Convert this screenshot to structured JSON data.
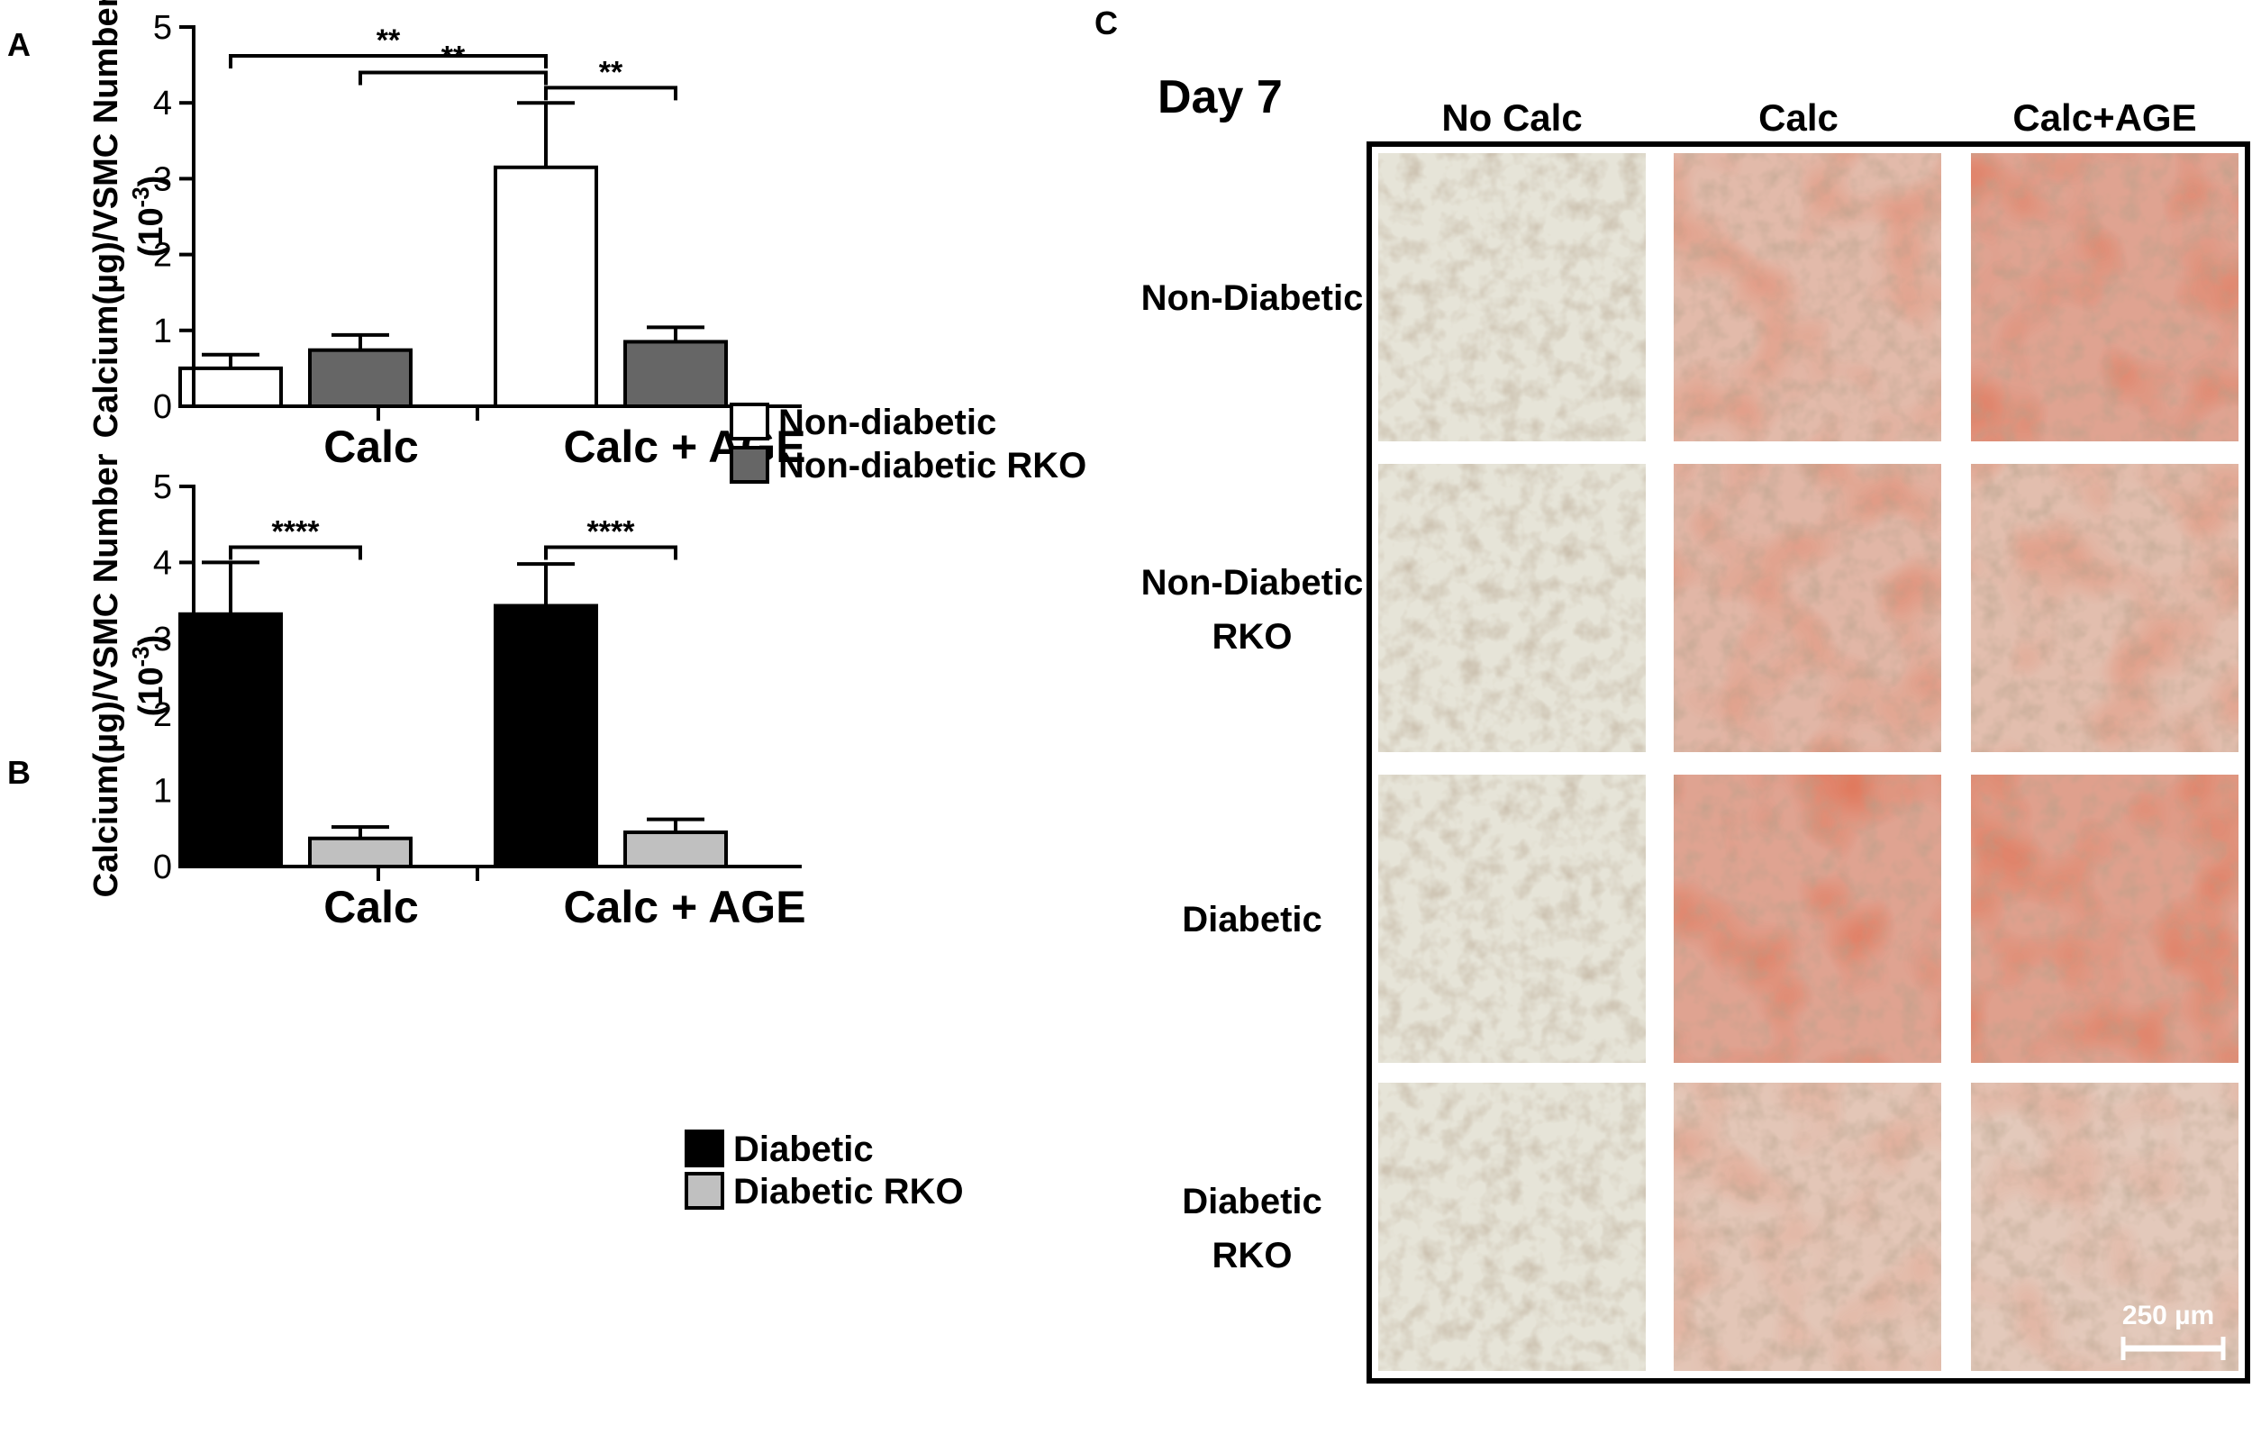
{
  "panel_labels": {
    "a": "A",
    "b": "B",
    "c": "C"
  },
  "chart_data": [
    {
      "id": "A",
      "type": "bar",
      "categories": [
        "Calc",
        "Calc + AGE"
      ],
      "ylabel": "Calcium(µg)/VSMC Number",
      "ylabel_unit_base": "(10",
      "ylabel_unit_exp": "-3",
      "ylabel_unit_close": ")",
      "ylim": [
        0,
        5
      ],
      "yticks": [
        "0",
        "1",
        "2",
        "3",
        "4",
        "5"
      ],
      "grid": false,
      "legend_position": "right",
      "series": [
        {
          "name": "Non-diabetic",
          "color": "#ffffff",
          "values": [
            0.5,
            3.15
          ],
          "errors": [
            0.18,
            0.85
          ]
        },
        {
          "name": "Non-diabetic RKO",
          "color": "#666666",
          "values": [
            0.74,
            0.85
          ],
          "errors": [
            0.2,
            0.19
          ]
        }
      ],
      "significance": [
        {
          "label": "**",
          "from": [
            0,
            0
          ],
          "to": [
            1,
            0
          ],
          "y": 4.62
        },
        {
          "label": "**",
          "from": [
            0,
            1
          ],
          "to": [
            1,
            0
          ],
          "y": 4.4
        },
        {
          "label": "**",
          "from": [
            1,
            0
          ],
          "to": [
            1,
            1
          ],
          "y": 4.2
        }
      ]
    },
    {
      "id": "B",
      "type": "bar",
      "categories": [
        "Calc",
        "Calc + AGE"
      ],
      "ylabel": "Calcium(µg)/VSMC Number",
      "ylabel_unit_base": "(10",
      "ylabel_unit_exp": "-3",
      "ylabel_unit_close": ")",
      "ylim": [
        0,
        5
      ],
      "yticks": [
        "0",
        "1",
        "2",
        "3",
        "4",
        "5"
      ],
      "grid": false,
      "legend_position": "right",
      "series": [
        {
          "name": "Diabetic",
          "color": "#000000",
          "values": [
            3.32,
            3.43
          ],
          "errors": [
            0.68,
            0.55
          ]
        },
        {
          "name": "Diabetic RKO",
          "color": "#c0c0c0",
          "values": [
            0.37,
            0.45
          ],
          "errors": [
            0.15,
            0.17
          ]
        }
      ],
      "significance": [
        {
          "label": "****",
          "from": [
            0,
            0
          ],
          "to": [
            0,
            1
          ],
          "y": 4.2
        },
        {
          "label": "****",
          "from": [
            1,
            0
          ],
          "to": [
            1,
            1
          ],
          "y": 4.2
        }
      ]
    }
  ],
  "panel_c": {
    "day_label": "Day 7",
    "columns": [
      "No Calc",
      "Calc",
      "Calc+AGE"
    ],
    "rows": [
      {
        "line1": "Non-Diabetic",
        "line2": ""
      },
      {
        "line1": "Non-Diabetic",
        "line2": "RKO"
      },
      {
        "line1": "Diabetic",
        "line2": ""
      },
      {
        "line1": "Diabetic",
        "line2": "RKO"
      }
    ],
    "scale_bar": "250 µm",
    "stain_levels": [
      [
        0.0,
        0.55,
        0.85
      ],
      [
        0.0,
        0.6,
        0.5
      ],
      [
        0.0,
        0.85,
        0.9
      ],
      [
        0.0,
        0.4,
        0.35
      ]
    ],
    "colors": {
      "clear": "#e6e4d8",
      "stain": "#d85a40",
      "border": "#000000"
    }
  }
}
